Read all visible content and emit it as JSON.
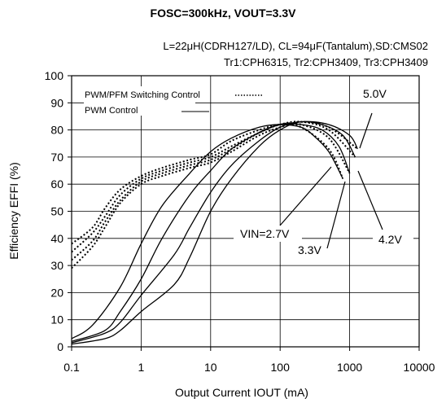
{
  "chart_data": {
    "type": "line",
    "title": "FOSC=300kHz, VOUT=3.3V",
    "subtitle_lines": [
      "L=22μH(CDRH127/LD), CL=94μF(Tantalum),SD:CMS02",
      "Tr1:CPH6315, Tr2:CPH3409, Tr3:CPH3409"
    ],
    "xlabel": "Output Current  IOUT (mA)",
    "ylabel": "Efficiency EFFI  (%)",
    "x_scale": "log",
    "xlim": [
      0.1,
      10000
    ],
    "ylim": [
      0,
      100
    ],
    "x_ticks": [
      "0.1",
      "1",
      "10",
      "100",
      "1000",
      "10000"
    ],
    "y_ticks": [
      "0",
      "10",
      "20",
      "30",
      "40",
      "50",
      "60",
      "70",
      "80",
      "90",
      "100"
    ],
    "grid": true,
    "legend": [
      {
        "name": "PWM/PFM Switching Control",
        "style": "dotted"
      },
      {
        "name": "PWM  Control",
        "style": "solid"
      }
    ],
    "annotations": [
      "VIN=2.7V",
      "3.3V",
      "4.2V",
      "5.0V"
    ],
    "series": [
      {
        "vin": "2.7V",
        "mode": "pwm",
        "style": "solid",
        "x": [
          0.1,
          0.2,
          0.5,
          1,
          2,
          5,
          10,
          20,
          50,
          100,
          200,
          300,
          500,
          800
        ],
        "y": [
          3,
          8,
          22,
          38,
          52,
          64,
          72,
          77,
          81,
          82,
          81,
          78,
          72,
          62
        ]
      },
      {
        "vin": "3.3V",
        "mode": "pwm",
        "style": "solid",
        "x": [
          0.1,
          0.3,
          0.5,
          1,
          2,
          5,
          10,
          20,
          50,
          100,
          200,
          400,
          700,
          1000
        ],
        "y": [
          2,
          6,
          13,
          25,
          40,
          56,
          65,
          73,
          79,
          82,
          82,
          80,
          74,
          64
        ]
      },
      {
        "vin": "4.2V",
        "mode": "pwm",
        "style": "solid",
        "x": [
          0.1,
          0.3,
          0.5,
          1,
          3,
          5,
          10,
          20,
          50,
          100,
          200,
          400,
          800,
          1200
        ],
        "y": [
          1.5,
          5,
          9,
          19,
          34,
          44,
          57,
          67,
          76,
          81,
          83,
          82,
          78,
          70
        ]
      },
      {
        "vin": "5.0V",
        "mode": "pwm",
        "style": "solid",
        "x": [
          0.1,
          0.3,
          0.5,
          1,
          3,
          5,
          10,
          20,
          50,
          100,
          200,
          500,
          1000,
          1300
        ],
        "y": [
          1,
          3,
          6,
          13,
          23,
          33,
          50,
          62,
          74,
          80,
          83,
          82,
          78,
          73
        ]
      },
      {
        "vin": "2.7V",
        "mode": "pwm/pfm",
        "style": "dotted",
        "x": [
          0.1,
          0.2,
          0.3,
          0.5,
          1,
          2,
          5,
          10,
          20,
          50,
          100,
          200,
          500,
          800
        ],
        "y": [
          38,
          44,
          51,
          58,
          63,
          66,
          69,
          71,
          76,
          80,
          82,
          81,
          73,
          62
        ]
      },
      {
        "vin": "3.3V",
        "mode": "pwm/pfm",
        "style": "dotted",
        "x": [
          0.1,
          0.2,
          0.3,
          0.5,
          1,
          2,
          5,
          10,
          20,
          50,
          100,
          200,
          500,
          1000
        ],
        "y": [
          35,
          42,
          48,
          56,
          62,
          65,
          68,
          70,
          74,
          79,
          82,
          82,
          77,
          64
        ]
      },
      {
        "vin": "4.2V",
        "mode": "pwm/pfm",
        "style": "dotted",
        "x": [
          0.1,
          0.2,
          0.3,
          0.5,
          1,
          2,
          5,
          10,
          20,
          50,
          100,
          200,
          500,
          1200
        ],
        "y": [
          32,
          39,
          46,
          54,
          61,
          64,
          67,
          69,
          73,
          79,
          82,
          83,
          80,
          70
        ]
      },
      {
        "vin": "5.0V",
        "mode": "pwm/pfm",
        "style": "dotted",
        "x": [
          0.1,
          0.2,
          0.3,
          0.5,
          1,
          2,
          5,
          10,
          20,
          50,
          100,
          200,
          500,
          1300
        ],
        "y": [
          29,
          37,
          44,
          53,
          60,
          63,
          66,
          68,
          72,
          78,
          81,
          83,
          81,
          73
        ]
      }
    ]
  }
}
